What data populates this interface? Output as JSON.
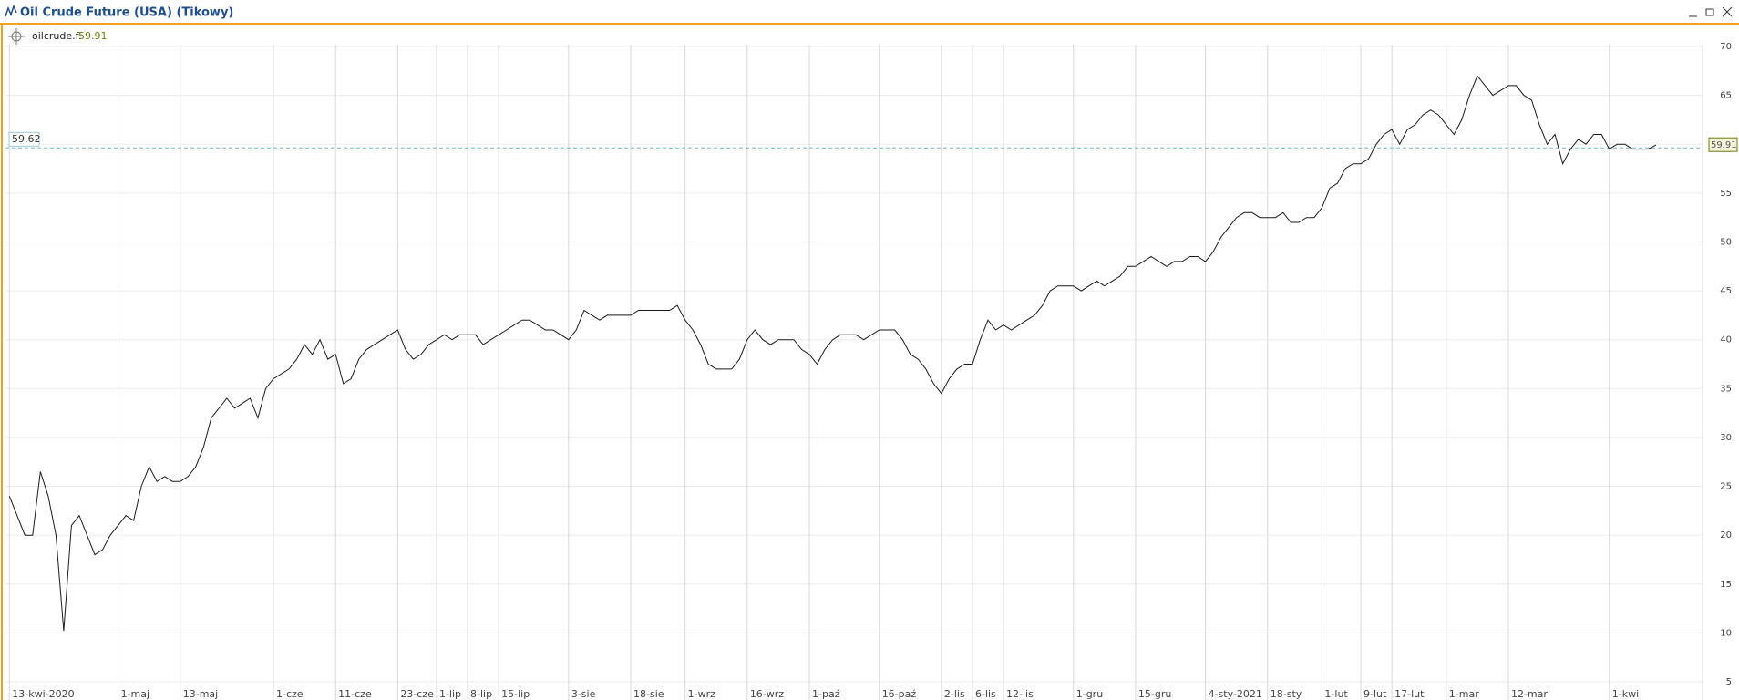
{
  "chart_data": {
    "type": "line",
    "title": "Oil Crude Future (USA) (Tikowy)",
    "symbol": "oilcrude.f:",
    "current_value": 59.91,
    "ref_line": 59.62,
    "x": [
      0,
      1,
      2,
      3,
      4,
      5,
      6,
      7,
      8,
      9,
      10,
      11,
      12,
      13,
      14,
      15,
      16,
      17,
      18,
      19,
      20,
      21,
      22,
      23,
      24,
      25,
      26,
      27,
      28,
      29,
      30,
      31,
      32,
      33,
      34,
      35,
      36,
      37,
      38,
      39,
      40,
      41,
      42,
      43,
      44,
      45,
      46,
      47,
      48,
      49,
      50,
      51,
      52,
      53,
      54,
      55,
      56,
      57,
      58,
      59,
      60,
      61,
      62,
      63,
      64,
      65,
      66,
      67,
      68,
      69,
      70,
      71,
      72,
      73,
      74,
      75,
      76,
      77,
      78,
      79,
      80,
      81,
      82,
      83,
      84,
      85,
      86,
      87,
      88,
      89,
      90,
      91,
      92,
      93,
      94,
      95,
      96,
      97,
      98,
      99,
      100,
      101,
      102,
      103,
      104,
      105,
      106,
      107,
      108,
      109,
      110,
      111,
      112,
      113,
      114,
      115,
      116,
      117,
      118,
      119,
      120,
      121,
      122,
      123,
      124,
      125,
      126,
      127,
      128,
      129,
      130,
      131,
      132,
      133,
      134,
      135,
      136,
      137,
      138,
      139,
      140,
      141,
      142,
      143,
      144,
      145,
      146,
      147,
      148,
      149,
      150,
      151,
      152,
      153,
      154,
      155,
      156,
      157,
      158,
      159,
      160,
      161,
      162,
      163,
      164,
      165,
      166,
      167,
      168,
      169,
      170,
      171,
      172,
      173,
      174,
      175,
      176,
      177,
      178,
      179,
      180,
      181,
      182,
      183,
      184,
      185,
      186,
      187,
      188,
      189,
      190,
      191,
      192,
      193,
      194,
      195,
      196,
      197,
      198,
      199,
      200,
      201,
      202,
      203,
      204,
      205,
      206,
      207,
      208,
      209,
      210,
      211,
      212
    ],
    "series": [
      {
        "name": "oilcrude.f",
        "color": "#1a1a1a",
        "values": [
          24,
          22,
          20,
          20,
          26.5,
          24,
          20,
          10.2,
          21,
          22,
          20,
          18,
          18.5,
          20,
          21,
          22,
          21.5,
          25,
          27,
          25.5,
          26,
          25.5,
          25.5,
          26,
          27,
          29,
          32,
          33,
          34,
          33,
          33.5,
          34,
          32,
          35,
          36,
          36.5,
          37,
          38,
          39.5,
          38.5,
          40,
          38,
          38.5,
          35.5,
          36,
          38,
          39,
          39.5,
          40,
          40.5,
          41,
          39,
          38,
          38.5,
          39.5,
          40,
          40.5,
          40,
          40.5,
          40.5,
          40.5,
          39.5,
          40,
          40.5,
          41,
          41.5,
          42,
          42,
          41.5,
          41,
          41,
          40.5,
          40,
          41,
          43,
          42.5,
          42,
          42.5,
          42.5,
          42.5,
          42.5,
          43,
          43,
          43,
          43,
          43,
          43.5,
          42,
          41,
          39.5,
          37.5,
          37,
          37,
          37,
          38,
          40,
          41,
          40,
          39.5,
          40,
          40,
          40,
          39,
          38.5,
          37.5,
          39,
          40,
          40.5,
          40.5,
          40.5,
          40,
          40.5,
          41,
          41,
          41,
          40,
          38.5,
          38,
          37,
          35.5,
          34.5,
          36,
          37,
          37.5,
          37.5,
          40,
          42,
          41,
          41.5,
          41,
          41.5,
          42,
          42.5,
          43.5,
          45,
          45.5,
          45.5,
          45.5,
          45,
          45.5,
          46,
          45.5,
          46,
          46.5,
          47.5,
          47.5,
          48,
          48.5,
          48,
          47.5,
          48,
          48,
          48.5,
          48.5,
          48,
          49,
          50.5,
          51.5,
          52.5,
          53,
          53,
          52.5,
          52.5,
          52.5,
          53,
          52,
          52,
          52.5,
          52.5,
          53.5,
          55.5,
          56,
          57.5,
          58,
          58,
          58.5,
          60,
          61,
          61.5,
          60,
          61.5,
          62,
          63,
          63.5,
          63,
          62,
          61,
          62.5,
          65,
          67,
          66,
          65,
          65.5,
          66,
          66,
          65,
          64.5,
          62,
          60,
          61,
          58,
          59.5,
          60.5,
          60,
          61,
          61,
          59.5,
          60,
          60,
          59.5,
          59.5,
          59.5,
          59.91
        ]
      }
    ],
    "xlim": [
      -0.5,
      218
    ],
    "xticks": [
      {
        "value": 0,
        "label": "13-kwi-2020"
      },
      {
        "value": 14,
        "label": "1-maj"
      },
      {
        "value": 22,
        "label": "13-maj"
      },
      {
        "value": 34,
        "label": "1-cze"
      },
      {
        "value": 42,
        "label": "11-cze"
      },
      {
        "value": 50,
        "label": "23-cze"
      },
      {
        "value": 55,
        "label": "1-lip"
      },
      {
        "value": 59,
        "label": "8-lip"
      },
      {
        "value": 63,
        "label": "15-lip"
      },
      {
        "value": 72,
        "label": "3-sie"
      },
      {
        "value": 80,
        "label": "18-sie"
      },
      {
        "value": 87,
        "label": "1-wrz"
      },
      {
        "value": 95,
        "label": "16-wrz"
      },
      {
        "value": 103,
        "label": "1-paź"
      },
      {
        "value": 112,
        "label": "16-paź"
      },
      {
        "value": 120,
        "label": "2-lis"
      },
      {
        "value": 124,
        "label": "6-lis"
      },
      {
        "value": 128,
        "label": "12-lis"
      },
      {
        "value": 137,
        "label": "1-gru"
      },
      {
        "value": 145,
        "label": "15-gru"
      },
      {
        "value": 154,
        "label": "4-sty-2021"
      },
      {
        "value": 162,
        "label": "18-sty"
      },
      {
        "value": 169,
        "label": "1-lut"
      },
      {
        "value": 174,
        "label": "9-lut"
      },
      {
        "value": 178,
        "label": "17-lut"
      },
      {
        "value": 185,
        "label": "1-mar"
      },
      {
        "value": 193,
        "label": "12-mar"
      },
      {
        "value": 206,
        "label": "1-kwi"
      }
    ],
    "ylim": [
      5,
      70
    ],
    "yticks": [
      5,
      10,
      15,
      20,
      25,
      30,
      35,
      40,
      45,
      50,
      55,
      60,
      65,
      70
    ],
    "grid": true
  }
}
